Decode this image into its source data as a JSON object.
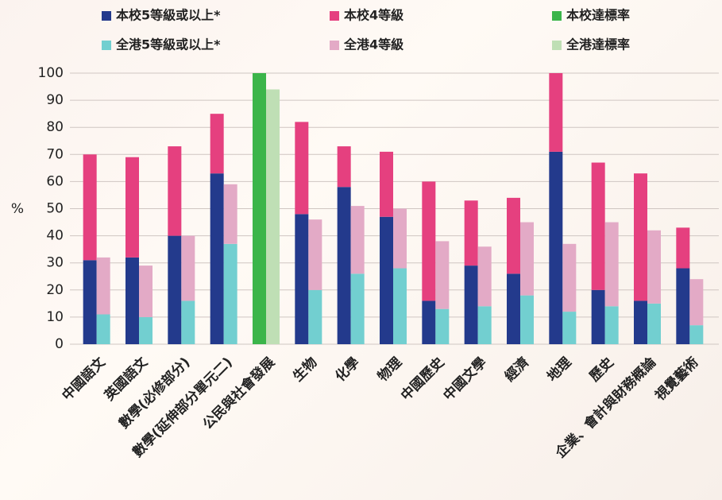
{
  "chart_data": {
    "type": "stacked_grouped_bar",
    "y_label": "%",
    "categories": [
      "中國語文",
      "英國語文",
      "數學(必修部分)",
      "數學(延伸部分單元二)",
      "公民與社會發展",
      "生物",
      "化學",
      "物理",
      "中國歷史",
      "中國文學",
      "經濟",
      "地理",
      "歷史",
      "企業、會計與財務概論",
      "視覺藝術"
    ],
    "series": [
      {
        "name": "本校5等級或以上*",
        "color": "#233a8c",
        "stack": "school",
        "values": [
          31,
          32,
          40,
          63,
          null,
          48,
          58,
          47,
          16,
          29,
          26,
          71,
          20,
          16,
          28
        ]
      },
      {
        "name": "本校4等級",
        "color": "#e5407f",
        "stack": "school",
        "values": [
          39,
          37,
          33,
          22,
          null,
          34,
          15,
          24,
          44,
          24,
          28,
          29,
          47,
          47,
          15
        ]
      },
      {
        "name": "本校達標率",
        "color": "#3bb54a",
        "stack": "school",
        "values": [
          null,
          null,
          null,
          null,
          100,
          null,
          null,
          null,
          null,
          null,
          null,
          null,
          null,
          null,
          null
        ]
      },
      {
        "name": "全港5等級或以上*",
        "color": "#72cfd0",
        "stack": "hk",
        "values": [
          11,
          10,
          16,
          37,
          null,
          20,
          26,
          28,
          13,
          14,
          18,
          12,
          14,
          15,
          7
        ]
      },
      {
        "name": "全港4等級",
        "color": "#e3aac6",
        "stack": "hk",
        "values": [
          21,
          19,
          24,
          22,
          null,
          26,
          25,
          22,
          25,
          22,
          27,
          25,
          31,
          27,
          17
        ]
      },
      {
        "name": "全港達標率",
        "color": "#bfdfb5",
        "stack": "hk",
        "values": [
          null,
          null,
          null,
          null,
          94,
          null,
          null,
          null,
          null,
          null,
          null,
          null,
          null,
          null,
          null
        ]
      }
    ],
    "ylim": [
      0,
      100
    ],
    "yticks": [
      0,
      10,
      20,
      30,
      40,
      50,
      60,
      70,
      80,
      90,
      100
    ],
    "grid": true
  }
}
